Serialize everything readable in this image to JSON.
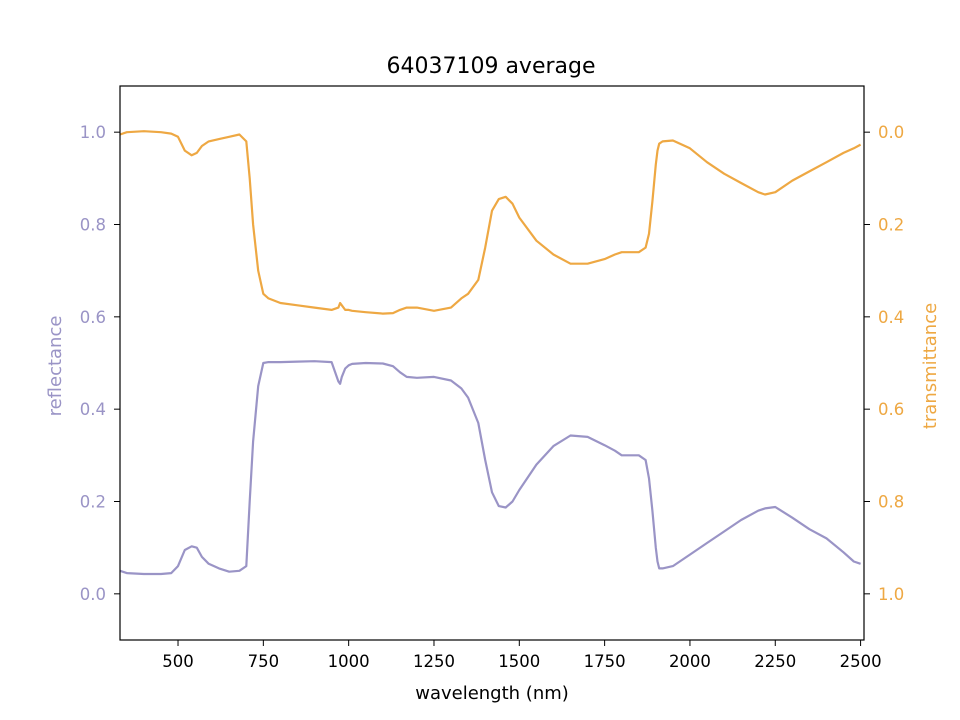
{
  "chart_data": {
    "type": "line",
    "title": "64037109 average",
    "xlabel": "wavelength (nm)",
    "xlim": [
      330,
      2510
    ],
    "x_ticks": [
      500,
      750,
      1000,
      1250,
      1500,
      1750,
      2000,
      2250,
      2500
    ],
    "grid": false,
    "legend": "none",
    "colors": {
      "reflectance": "#9a94c6",
      "transmittance": "#eea843"
    },
    "left_axis": {
      "label": "reflectance",
      "ylim": [
        -0.1,
        1.1
      ],
      "ticks": [
        "0.0",
        "0.2",
        "0.4",
        "0.6",
        "0.8",
        "1.0"
      ]
    },
    "right_axis": {
      "label": "transmittance",
      "ylim": [
        1.1,
        -0.1
      ],
      "inverted": true,
      "ticks": [
        "0.0",
        "0.2",
        "0.4",
        "0.6",
        "0.8",
        "1.0"
      ]
    },
    "series": [
      {
        "key": "reflectance",
        "axis": "left",
        "x": [
          330,
          350,
          400,
          450,
          480,
          500,
          520,
          540,
          555,
          570,
          590,
          620,
          650,
          680,
          700,
          710,
          720,
          735,
          750,
          765,
          800,
          850,
          900,
          950,
          970,
          975,
          980,
          990,
          1000,
          1010,
          1050,
          1100,
          1130,
          1150,
          1170,
          1200,
          1250,
          1300,
          1330,
          1350,
          1380,
          1400,
          1420,
          1440,
          1460,
          1480,
          1500,
          1550,
          1600,
          1650,
          1700,
          1750,
          1780,
          1800,
          1850,
          1870,
          1880,
          1890,
          1900,
          1905,
          1910,
          1920,
          1950,
          2000,
          2050,
          2100,
          2150,
          2200,
          2220,
          2250,
          2300,
          2350,
          2400,
          2450,
          2480,
          2500
        ],
        "y": [
          0.05,
          0.045,
          0.043,
          0.043,
          0.045,
          0.06,
          0.095,
          0.103,
          0.1,
          0.08,
          0.065,
          0.055,
          0.048,
          0.05,
          0.06,
          0.2,
          0.33,
          0.45,
          0.5,
          0.502,
          0.502,
          0.503,
          0.504,
          0.502,
          0.46,
          0.455,
          0.47,
          0.488,
          0.495,
          0.498,
          0.5,
          0.499,
          0.493,
          0.48,
          0.47,
          0.468,
          0.47,
          0.462,
          0.445,
          0.425,
          0.37,
          0.29,
          0.22,
          0.19,
          0.187,
          0.2,
          0.225,
          0.28,
          0.32,
          0.343,
          0.34,
          0.322,
          0.31,
          0.3,
          0.3,
          0.29,
          0.25,
          0.18,
          0.1,
          0.07,
          0.055,
          0.055,
          0.06,
          0.085,
          0.11,
          0.135,
          0.16,
          0.18,
          0.185,
          0.188,
          0.165,
          0.14,
          0.12,
          0.09,
          0.07,
          0.065
        ]
      },
      {
        "key": "transmittance",
        "axis": "right",
        "x": [
          330,
          350,
          400,
          450,
          480,
          500,
          520,
          540,
          555,
          570,
          590,
          620,
          650,
          680,
          700,
          710,
          720,
          735,
          750,
          765,
          800,
          850,
          900,
          950,
          970,
          975,
          980,
          990,
          1000,
          1010,
          1050,
          1100,
          1130,
          1150,
          1170,
          1200,
          1250,
          1300,
          1330,
          1350,
          1380,
          1400,
          1420,
          1440,
          1460,
          1480,
          1500,
          1550,
          1600,
          1650,
          1700,
          1750,
          1780,
          1800,
          1850,
          1870,
          1880,
          1890,
          1900,
          1905,
          1910,
          1920,
          1950,
          2000,
          2050,
          2100,
          2150,
          2200,
          2220,
          2250,
          2300,
          2350,
          2400,
          2450,
          2480,
          2500
        ],
        "y": [
          0.005,
          0.0,
          -0.002,
          0.0,
          0.003,
          0.01,
          0.04,
          0.05,
          0.045,
          0.03,
          0.02,
          0.015,
          0.01,
          0.005,
          0.02,
          0.1,
          0.2,
          0.3,
          0.35,
          0.36,
          0.37,
          0.375,
          0.38,
          0.385,
          0.38,
          0.37,
          0.375,
          0.385,
          0.385,
          0.387,
          0.39,
          0.393,
          0.392,
          0.385,
          0.38,
          0.38,
          0.387,
          0.38,
          0.36,
          0.35,
          0.32,
          0.25,
          0.17,
          0.145,
          0.14,
          0.155,
          0.185,
          0.235,
          0.265,
          0.285,
          0.285,
          0.275,
          0.265,
          0.26,
          0.26,
          0.25,
          0.22,
          0.15,
          0.07,
          0.04,
          0.025,
          0.02,
          0.018,
          0.035,
          0.065,
          0.09,
          0.11,
          0.13,
          0.135,
          0.13,
          0.105,
          0.085,
          0.065,
          0.045,
          0.035,
          0.027
        ]
      }
    ]
  }
}
